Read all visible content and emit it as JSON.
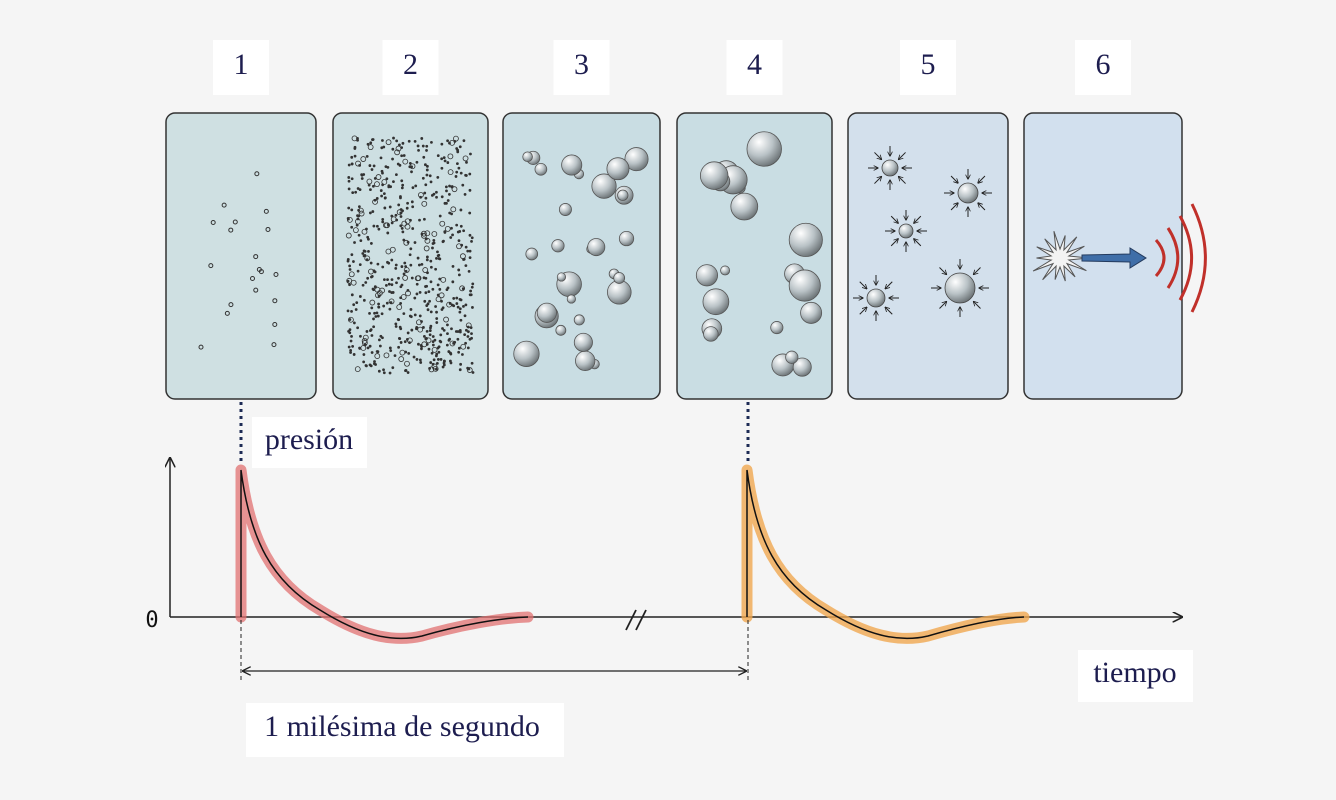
{
  "panels": [
    "1",
    "2",
    "3",
    "4",
    "5",
    "6"
  ],
  "pressure_label": "presión",
  "zero_label": "0",
  "time_label": "tiempo",
  "interval_label": "1 milésima de segundo"
}
